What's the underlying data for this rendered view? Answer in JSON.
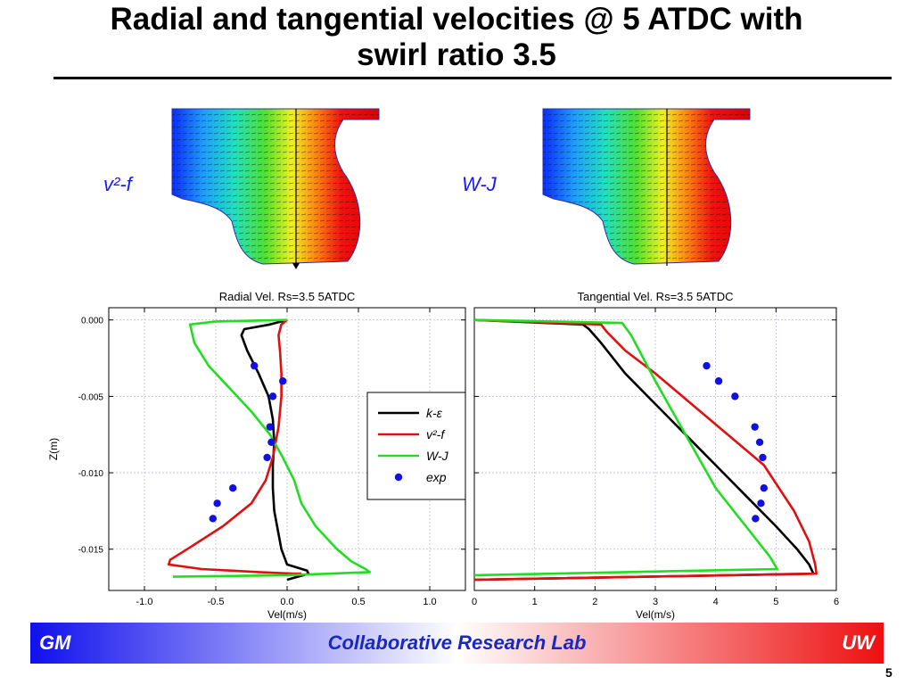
{
  "slide": {
    "title_line1": "Radial and tangential velocities @ 5 ATDC with",
    "title_line2": "swirl ratio 3.5",
    "footer_left": "GM",
    "footer_center": "Collaborative Research Lab",
    "footer_right": "UW",
    "page_number": "5"
  },
  "cfd": {
    "left_label": "v²-f",
    "right_label": "W-J"
  },
  "colors": {
    "k_eps": "#000000",
    "v2f": "#e01010",
    "wj": "#22dd22",
    "exp": "#1010e0"
  },
  "legend": [
    "k-ε",
    "v²-f",
    "W-J",
    "exp"
  ],
  "chart_data": [
    {
      "type": "line",
      "title": "Radial Vel. Rs=3.5 5ATDC",
      "xlabel": "Vel(m/s)",
      "ylabel": "Z(m)",
      "xlim": [
        -1.25,
        1.25
      ],
      "ylim": [
        -0.0177,
        0.0008
      ],
      "xticks": [
        -1.0,
        -0.5,
        0.0,
        0.5,
        1.0
      ],
      "xtick_labels": [
        "-1.0",
        "-0.5",
        "0.0",
        "0.5",
        "1.0"
      ],
      "yticks": [
        0.0,
        -0.005,
        -0.01,
        -0.015
      ],
      "ytick_labels": [
        "0.000",
        "-0.005",
        "-0.010",
        "-0.015"
      ],
      "grid": true,
      "legend_position": "right",
      "series": [
        {
          "name": "k-ε",
          "kind": "line",
          "color": "#000000",
          "x": [
            0.0,
            -0.12,
            -0.3,
            -0.32,
            -0.28,
            -0.2,
            -0.13,
            -0.1,
            -0.09,
            -0.1,
            -0.1,
            -0.09,
            -0.06,
            -0.04,
            -0.02,
            0.0,
            0.14,
            0.15,
            0.0
          ],
          "y": [
            0.0,
            -0.0003,
            -0.0006,
            -0.001,
            -0.002,
            -0.0035,
            -0.005,
            -0.0065,
            -0.008,
            -0.0095,
            -0.011,
            -0.0125,
            -0.014,
            -0.015,
            -0.0155,
            -0.016,
            -0.0164,
            -0.0166,
            -0.017
          ]
        },
        {
          "name": "v²-f",
          "kind": "line",
          "color": "#e01010",
          "x": [
            0.0,
            -0.04,
            -0.06,
            -0.05,
            -0.04,
            -0.04,
            -0.06,
            -0.1,
            -0.15,
            -0.25,
            -0.45,
            -0.7,
            -0.82,
            -0.83,
            -0.6,
            -0.2,
            0.05,
            0.1
          ],
          "y": [
            0.0,
            -0.0003,
            -0.001,
            -0.002,
            -0.0035,
            -0.005,
            -0.007,
            -0.009,
            -0.0105,
            -0.012,
            -0.0135,
            -0.015,
            -0.0157,
            -0.016,
            -0.0163,
            -0.0165,
            -0.0166,
            -0.0166
          ]
        },
        {
          "name": "W-J",
          "kind": "line",
          "color": "#22dd22",
          "x": [
            0.0,
            -0.25,
            -0.5,
            -0.68,
            -0.65,
            -0.55,
            -0.4,
            -0.25,
            -0.12,
            -0.03,
            0.05,
            0.1,
            0.2,
            0.35,
            0.45,
            0.55,
            0.58,
            0.0,
            -0.8
          ],
          "y": [
            0.0,
            -5e-05,
            -0.0001,
            -0.0003,
            -0.0015,
            -0.003,
            -0.0045,
            -0.006,
            -0.0075,
            -0.009,
            -0.0105,
            -0.012,
            -0.0135,
            -0.015,
            -0.0158,
            -0.0163,
            -0.0165,
            -0.0167,
            -0.0168
          ]
        },
        {
          "name": "exp",
          "kind": "scatter",
          "color": "#1010e0",
          "x": [
            -0.23,
            -0.03,
            -0.1,
            -0.12,
            -0.11,
            -0.14,
            -0.38,
            -0.49,
            -0.52
          ],
          "y": [
            -0.003,
            -0.004,
            -0.005,
            -0.007,
            -0.008,
            -0.009,
            -0.011,
            -0.012,
            -0.013
          ]
        }
      ]
    },
    {
      "type": "line",
      "title": "Tangential Vel. Rs=3.5 5ATDC",
      "xlabel": "Vel(m/s)",
      "xlim": [
        0,
        6
      ],
      "ylim": [
        -0.0177,
        0.0008
      ],
      "xticks": [
        0,
        1,
        2,
        3,
        4,
        5,
        6
      ],
      "xtick_labels": [
        "0",
        "1",
        "2",
        "3",
        "4",
        "5",
        "6"
      ],
      "yticks": [
        0.0,
        -0.005,
        -0.01,
        -0.015
      ],
      "grid": true,
      "series": [
        {
          "name": "k-ε",
          "kind": "line",
          "color": "#000000",
          "x": [
            0.0,
            1.8,
            1.9,
            2.1,
            2.5,
            3.0,
            3.5,
            4.0,
            4.5,
            5.0,
            5.35,
            5.55,
            5.62,
            0.0
          ],
          "y": [
            0.0,
            -0.0003,
            -0.0006,
            -0.0015,
            -0.0035,
            -0.0055,
            -0.0075,
            -0.0095,
            -0.0115,
            -0.0135,
            -0.015,
            -0.016,
            -0.0166,
            -0.017
          ]
        },
        {
          "name": "v²-f",
          "kind": "line",
          "color": "#e01010",
          "x": [
            0.0,
            2.1,
            2.2,
            2.5,
            3.0,
            3.6,
            4.2,
            4.8,
            5.3,
            5.55,
            5.65,
            5.67,
            0.0
          ],
          "y": [
            0.0,
            -0.0003,
            -0.0008,
            -0.002,
            -0.0035,
            -0.0055,
            -0.0075,
            -0.0095,
            -0.0125,
            -0.0145,
            -0.016,
            -0.0166,
            -0.017
          ]
        },
        {
          "name": "W-J",
          "kind": "line",
          "color": "#22dd22",
          "x": [
            0.0,
            2.45,
            2.6,
            3.0,
            3.5,
            4.0,
            4.5,
            4.9,
            5.02,
            0.0
          ],
          "y": [
            0.0,
            -0.0002,
            -0.001,
            -0.004,
            -0.0075,
            -0.011,
            -0.0135,
            -0.0155,
            -0.0163,
            -0.0167
          ]
        },
        {
          "name": "exp",
          "kind": "scatter",
          "color": "#1010e0",
          "x": [
            3.85,
            4.05,
            4.32,
            4.65,
            4.73,
            4.78,
            4.8,
            4.75,
            4.66
          ],
          "y": [
            -0.003,
            -0.004,
            -0.005,
            -0.007,
            -0.008,
            -0.009,
            -0.011,
            -0.012,
            -0.013
          ]
        }
      ]
    }
  ]
}
